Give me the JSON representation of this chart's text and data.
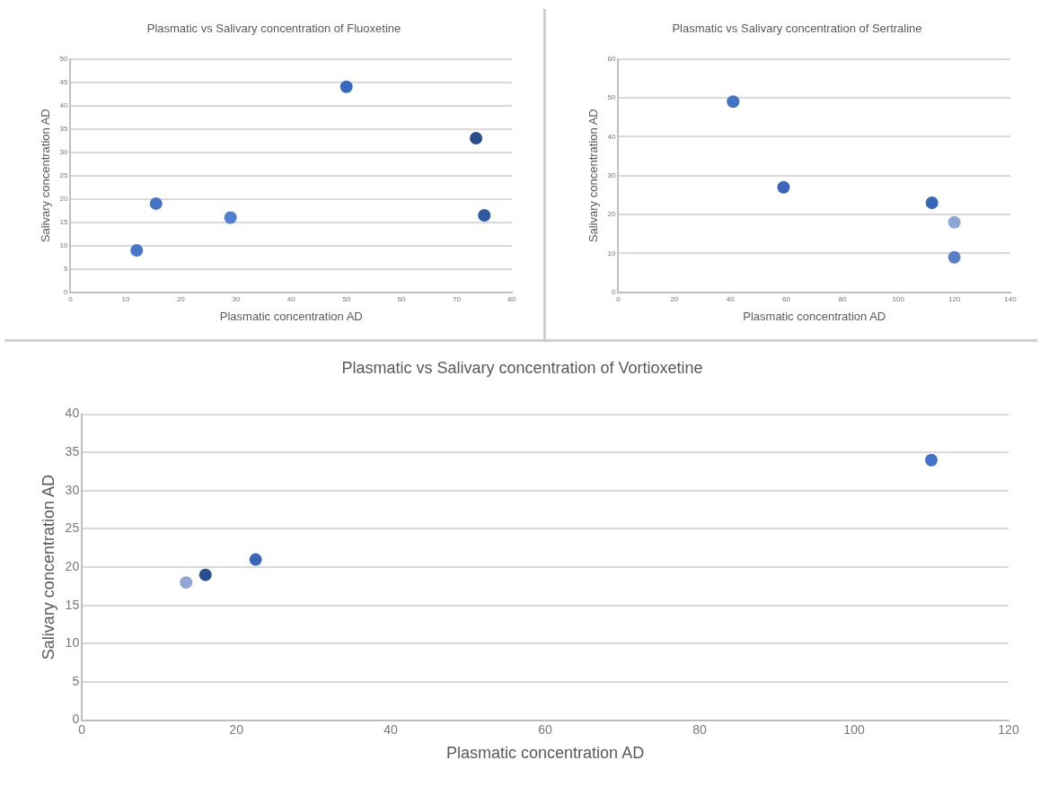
{
  "chart_data": [
    {
      "type": "scatter",
      "title": "Plasmatic vs Salivary concentration of Fluoxetine",
      "xlabel": "Plasmatic concentration AD",
      "ylabel": "Salivary concentration AD",
      "xlim": [
        0,
        80
      ],
      "xticks": [
        0,
        10,
        20,
        30,
        40,
        50,
        60,
        70,
        80
      ],
      "ylim": [
        0,
        50
      ],
      "yticks": [
        0,
        5,
        10,
        15,
        20,
        25,
        30,
        35,
        40,
        45,
        50
      ],
      "grid": "y",
      "legend": false,
      "marker": "circle",
      "series": [
        {
          "x": [
            12,
            15.5,
            29,
            50,
            73.5,
            75
          ],
          "values": [
            9,
            19,
            16,
            44,
            33,
            16.5
          ],
          "colors": [
            "#4a78c8",
            "#4472c4",
            "#4f7fd0",
            "#3a6ac0",
            "#2a4f8f",
            "#2f5aa0"
          ]
        }
      ]
    },
    {
      "type": "scatter",
      "title": "Plasmatic vs Salivary concentration of Sertraline",
      "xlabel": "Plasmatic concentration AD",
      "ylabel": "Salivary concentration AD",
      "xlim": [
        0,
        140
      ],
      "xticks": [
        0,
        20,
        40,
        60,
        80,
        100,
        120,
        140
      ],
      "ylim": [
        0,
        60
      ],
      "yticks": [
        0,
        10,
        20,
        30,
        40,
        50,
        60
      ],
      "grid": "y",
      "legend": false,
      "marker": "circle",
      "series": [
        {
          "x": [
            41,
            59,
            112,
            120,
            120
          ],
          "values": [
            49,
            27,
            23,
            18,
            9
          ],
          "colors": [
            "#4472c4",
            "#3a66b8",
            "#3a66b8",
            "#8fa5d4",
            "#5b7fc4"
          ]
        }
      ]
    },
    {
      "type": "scatter",
      "title": "Plasmatic vs Salivary concentration of Vortioxetine",
      "xlabel": "Plasmatic concentration AD",
      "ylabel": "Salivary concentration AD",
      "xlim": [
        0,
        120
      ],
      "xticks": [
        0,
        20,
        40,
        60,
        80,
        100,
        120
      ],
      "ylim": [
        0,
        40
      ],
      "yticks": [
        0,
        5,
        10,
        15,
        20,
        25,
        30,
        35,
        40
      ],
      "grid": "y",
      "legend": false,
      "marker": "circle",
      "series": [
        {
          "x": [
            13.5,
            16,
            22.5,
            110
          ],
          "values": [
            18,
            19,
            21,
            34
          ],
          "colors": [
            "#8fa5d4",
            "#2a4f8f",
            "#3a66b8",
            "#4472c4"
          ]
        }
      ]
    }
  ]
}
